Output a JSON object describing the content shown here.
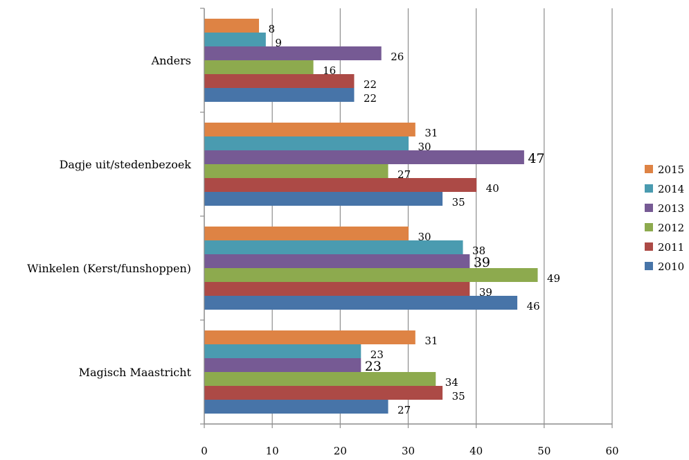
{
  "chart_data": {
    "type": "bar",
    "orientation": "horizontal",
    "categories": [
      "Anders",
      "Dagje uit/stedenbezoek",
      "Winkelen (Kerst/funshoppen)",
      "Magisch Maastricht"
    ],
    "series": [
      {
        "name": "2015",
        "color": "#DE8344",
        "values": [
          8,
          31,
          30,
          31
        ]
      },
      {
        "name": "2014",
        "color": "#4A9BB0",
        "values": [
          9,
          30,
          38,
          23
        ]
      },
      {
        "name": "2013",
        "color": "#765A94",
        "values": [
          26,
          47,
          39,
          23
        ]
      },
      {
        "name": "2012",
        "color": "#8DAA4E",
        "values": [
          16,
          27,
          49,
          34
        ]
      },
      {
        "name": "2011",
        "color": "#AC4A46",
        "values": [
          22,
          40,
          39,
          35
        ]
      },
      {
        "name": "2010",
        "color": "#4774A8",
        "values": [
          22,
          35,
          46,
          27
        ]
      }
    ],
    "xlim": [
      0,
      60
    ],
    "xticks": [
      0,
      10,
      20,
      30,
      40,
      50,
      60
    ],
    "grid": "vertical",
    "legend": "right",
    "title": "",
    "xlabel": "",
    "ylabel": ""
  }
}
